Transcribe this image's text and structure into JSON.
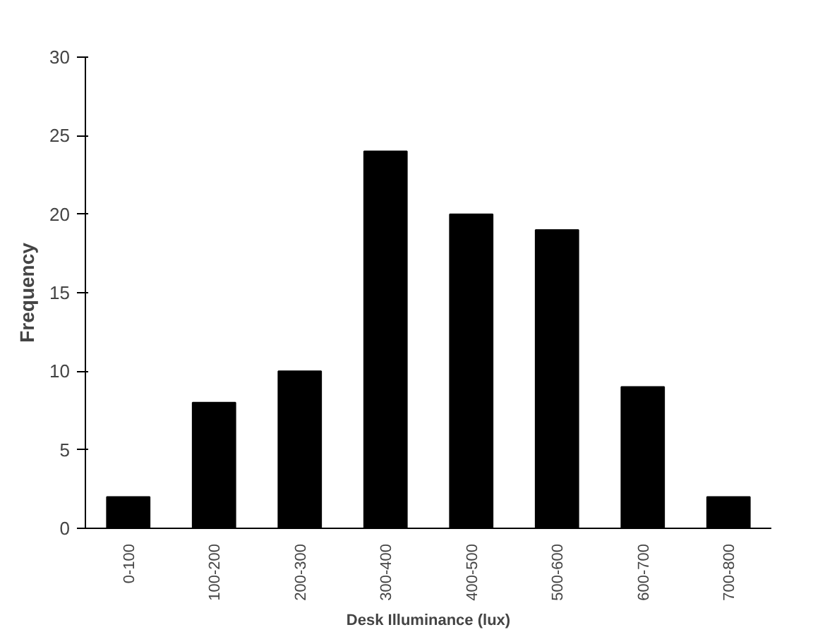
{
  "chart_data": {
    "type": "bar",
    "xlabel": "Desk Illuminance (lux)",
    "ylabel": "Frequency",
    "categories": [
      "0-100",
      "100-200",
      "200-300",
      "300-400",
      "400-500",
      "500-600",
      "600-700",
      "700-800"
    ],
    "values": [
      2,
      8,
      10,
      24,
      20,
      19,
      9,
      2
    ],
    "color": "#000000",
    "ylim": [
      0,
      30
    ],
    "yticks": [
      0,
      5,
      10,
      15,
      20,
      25,
      30
    ],
    "grid": false
  }
}
